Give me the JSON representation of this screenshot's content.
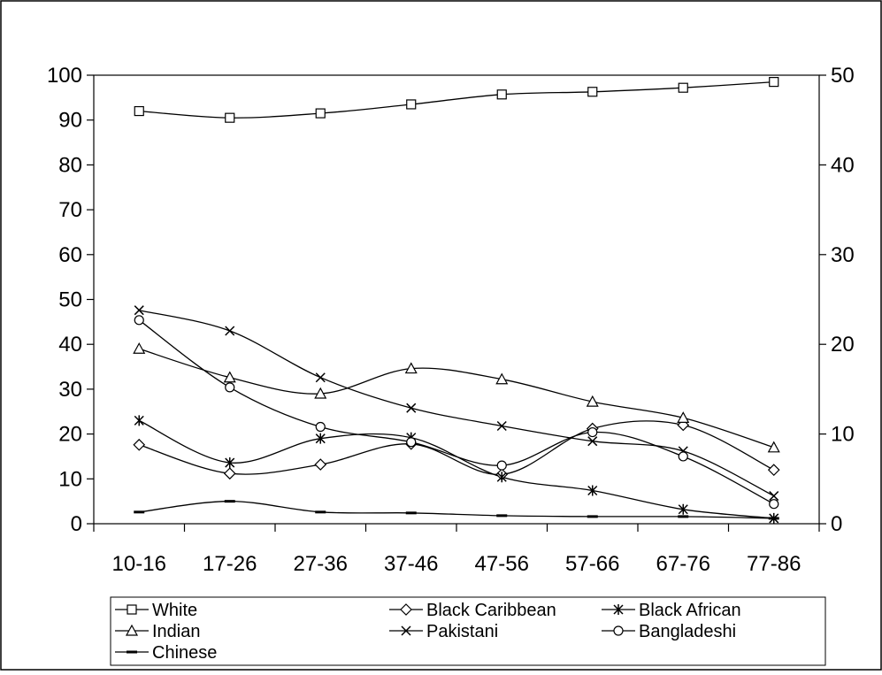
{
  "chart_data": {
    "type": "line",
    "categories": [
      "10-16",
      "17-26",
      "27-36",
      "37-46",
      "47-56",
      "57-66",
      "67-76",
      "77-86"
    ],
    "y_left_ticks": [
      0,
      10,
      20,
      30,
      40,
      50,
      60,
      70,
      80,
      90,
      100
    ],
    "y_right_ticks": [
      0,
      10,
      20,
      30,
      40,
      50
    ],
    "ylim_left": [
      0,
      100
    ],
    "ylim_right": [
      0,
      50
    ],
    "grid": false,
    "legend": "bottom",
    "series": [
      {
        "name": "White",
        "axis": "left",
        "marker": "square",
        "values": [
          92,
          90.5,
          91.5,
          93.5,
          95.7,
          96.3,
          97.2,
          98.5
        ]
      },
      {
        "name": "Black Caribbean",
        "axis": "right",
        "marker": "diamond",
        "values": [
          8.8,
          5.6,
          6.6,
          8.9,
          5.5,
          10.6,
          11,
          6
        ]
      },
      {
        "name": "Black African",
        "axis": "right",
        "marker": "asterisk",
        "values": [
          11.5,
          6.8,
          9.5,
          9.6,
          5.2,
          3.7,
          1.6,
          0.6
        ]
      },
      {
        "name": "Indian",
        "axis": "right",
        "marker": "triangle",
        "values": [
          19.5,
          16.3,
          14.5,
          17.3,
          16.1,
          13.6,
          11.8,
          8.5
        ]
      },
      {
        "name": "Pakistani",
        "axis": "right",
        "marker": "x",
        "values": [
          23.8,
          21.5,
          16.3,
          12.9,
          10.9,
          9.2,
          8.1,
          3.1
        ]
      },
      {
        "name": "Bangladeshi",
        "axis": "right",
        "marker": "circle",
        "values": [
          22.7,
          15.2,
          10.8,
          9.1,
          6.5,
          10.2,
          7.5,
          2.2
        ]
      },
      {
        "name": "Chinese",
        "axis": "right",
        "marker": "dash",
        "values": [
          1.3,
          2.5,
          1.3,
          1.2,
          0.9,
          0.8,
          0.8,
          0.6
        ]
      }
    ]
  }
}
